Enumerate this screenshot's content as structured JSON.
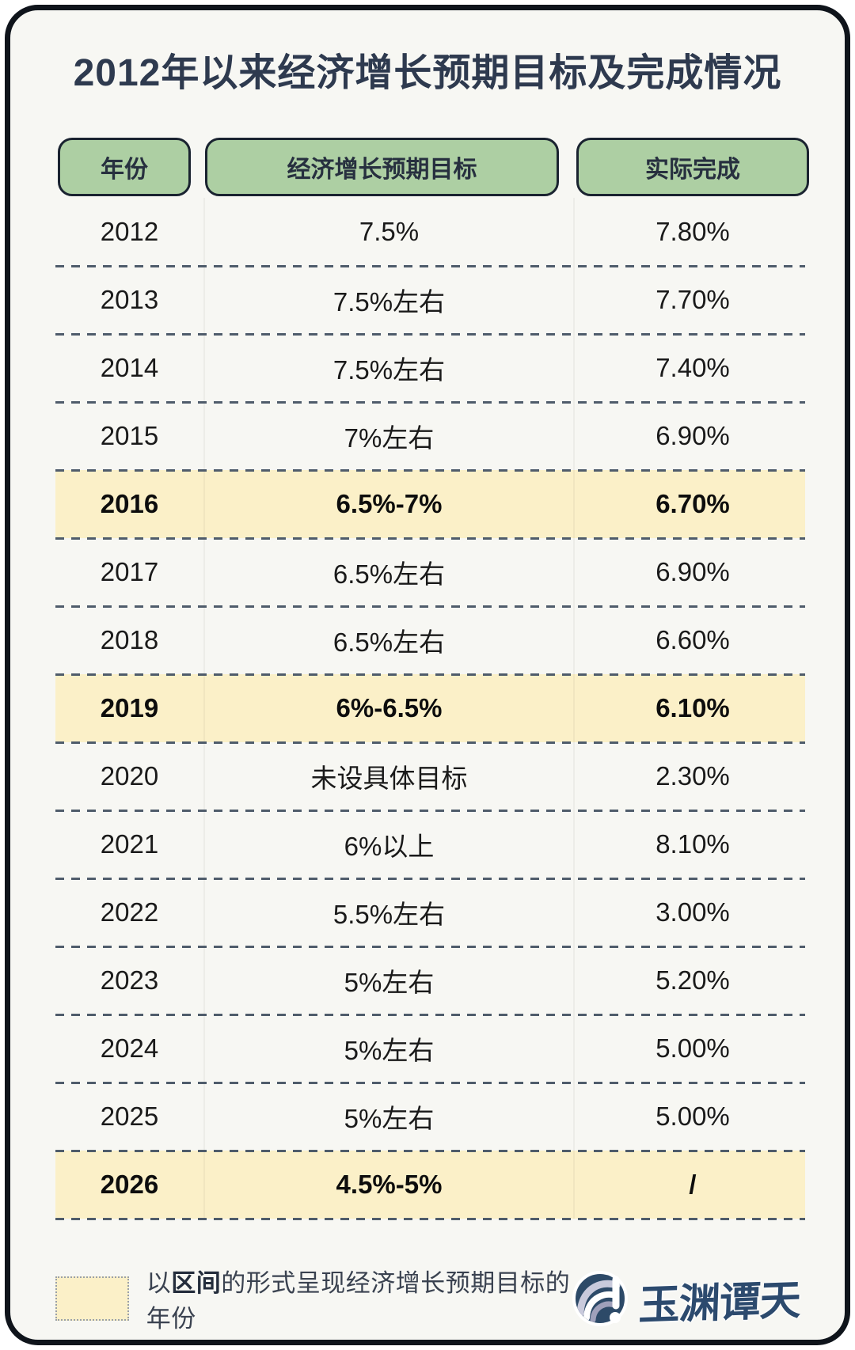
{
  "title": "2012年以来经济增长预期目标及完成情况",
  "chart_data": {
    "type": "table",
    "title": "2012年以来经济增长预期目标及完成情况",
    "columns": [
      "年份",
      "经济增长预期目标",
      "实际完成"
    ],
    "rows": [
      [
        "2012",
        "7.5%",
        "7.80%"
      ],
      [
        "2013",
        "7.5%左右",
        "7.70%"
      ],
      [
        "2014",
        "7.5%左右",
        "7.40%"
      ],
      [
        "2015",
        "7%左右",
        "6.90%"
      ],
      [
        "2016",
        "6.5%-7%",
        "6.70%"
      ],
      [
        "2017",
        "6.5%左右",
        "6.90%"
      ],
      [
        "2018",
        "6.5%左右",
        "6.60%"
      ],
      [
        "2019",
        "6%-6.5%",
        "6.10%"
      ],
      [
        "2020",
        "未设具体目标",
        "2.30%"
      ],
      [
        "2021",
        "6%以上",
        "8.10%"
      ],
      [
        "2022",
        "5.5%左右",
        "3.00%"
      ],
      [
        "2023",
        "5%左右",
        "5.20%"
      ],
      [
        "2024",
        "5%左右",
        "5.00%"
      ],
      [
        "2025",
        "5%左右",
        "5.00%"
      ],
      [
        "2026",
        "4.5%-5%",
        "/"
      ]
    ],
    "highlighted_years": [
      "2016",
      "2019",
      "2026"
    ],
    "highlight_meaning": "以区间的形式呈现经济增长预期目标的年份"
  },
  "legend": {
    "prefix": "以",
    "emphasis": "区间",
    "suffix": "的形式呈现经济增长预期目标的年份"
  },
  "logo": {
    "name": "玉渊谭天"
  },
  "colors": {
    "card_bg": "#f7f7f3",
    "frame": "#0f141b",
    "header_green": "#adcfa3",
    "highlight_yellow": "#fbf0c8",
    "title_navy": "#2e3a4f",
    "dash_gray": "#4f5c6b",
    "logo_blue": "#2d4a68"
  }
}
